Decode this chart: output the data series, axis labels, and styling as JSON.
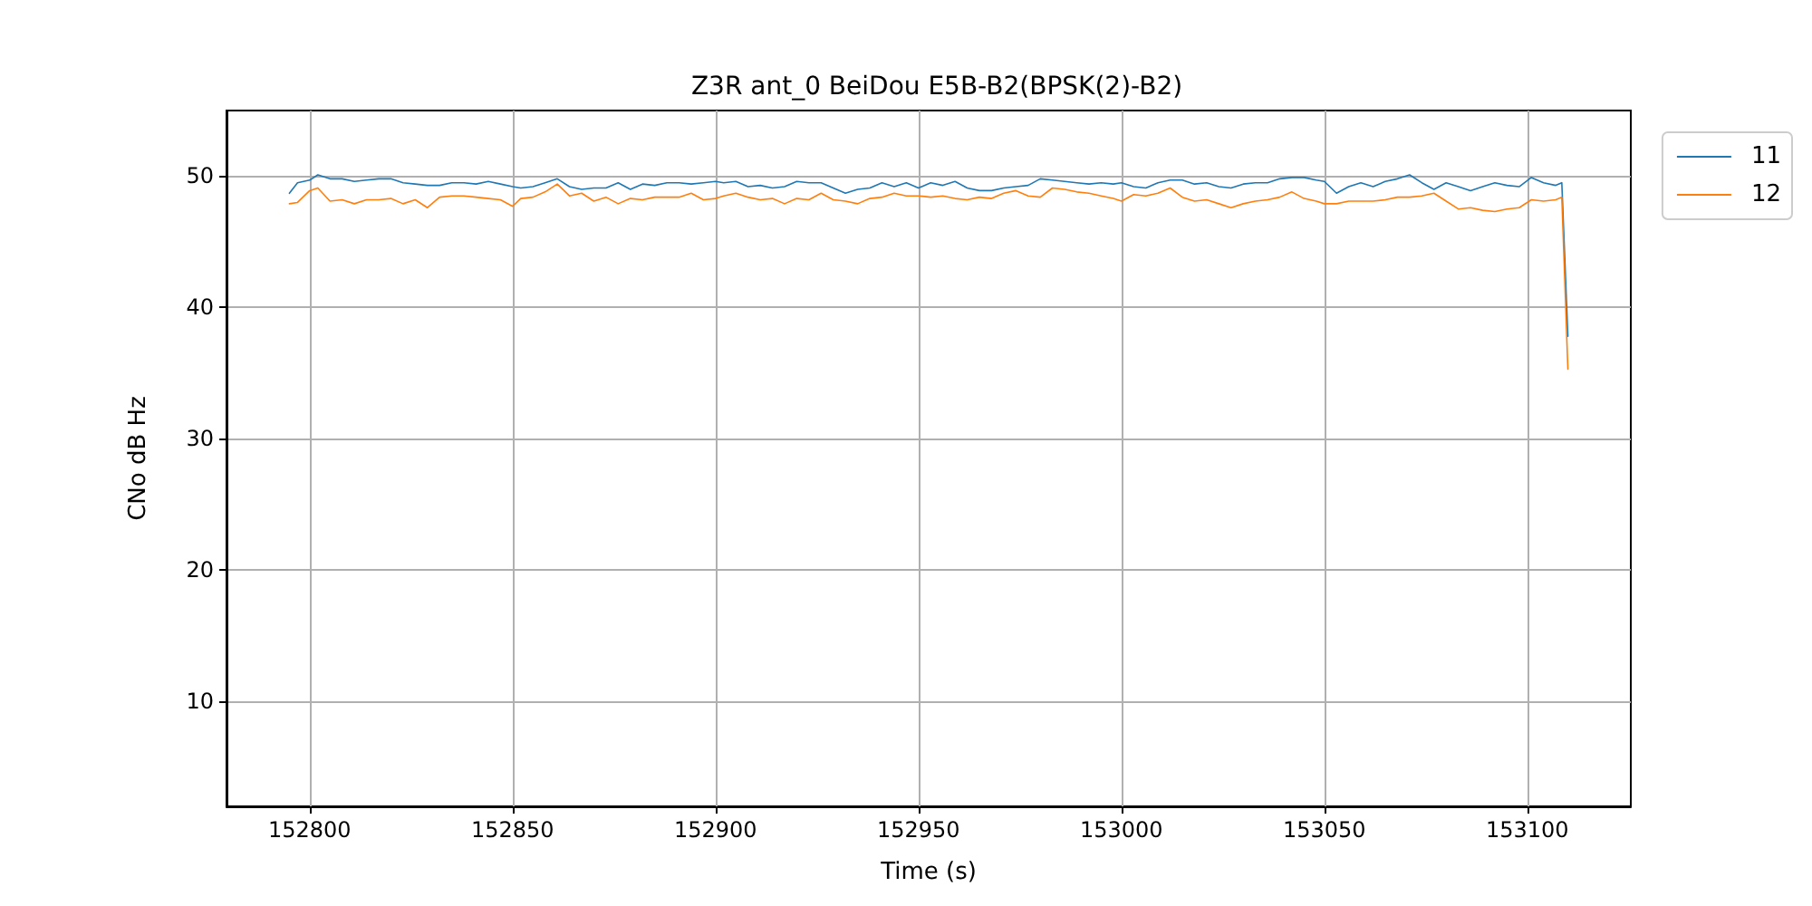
{
  "chart_data": {
    "type": "line",
    "title": "Z3R ant_0 BeiDou E5B-B2(BPSK(2)-B2)",
    "xlabel": "Time (s)",
    "ylabel": "CNo dB Hz",
    "xlim": [
      152779.5,
      153125.5
    ],
    "xticks": [
      152800,
      152850,
      152900,
      152950,
      153000,
      153050,
      153100
    ],
    "ylim": [
      2,
      55
    ],
    "yticks": [
      10,
      20,
      30,
      40,
      50
    ],
    "grid": true,
    "legend": "top right",
    "marker": "none",
    "line_style": "solid",
    "x": [
      152795,
      152797,
      152800,
      152802,
      152805,
      152808,
      152811,
      152814,
      152817,
      152820,
      152823,
      152826,
      152829,
      152832,
      152835,
      152838,
      152841,
      152844,
      152847,
      152850,
      152852,
      152855,
      152858,
      152861,
      152864,
      152867,
      152870,
      152873,
      152876,
      152879,
      152882,
      152885,
      152888,
      152891,
      152894,
      152897,
      152900,
      152902,
      152905,
      152908,
      152911,
      152914,
      152917,
      152920,
      152923,
      152926,
      152929,
      152932,
      152935,
      152938,
      152941,
      152944,
      152947,
      152950,
      152953,
      152956,
      152959,
      152962,
      152965,
      152968,
      152971,
      152974,
      152977,
      152980,
      152983,
      152986,
      152989,
      152992,
      152995,
      152998,
      153000,
      153003,
      153006,
      153009,
      153012,
      153015,
      153018,
      153021,
      153024,
      153027,
      153030,
      153033,
      153036,
      153039,
      153042,
      153045,
      153048,
      153050,
      153053,
      153056,
      153059,
      153062,
      153065,
      153068,
      153071,
      153074,
      153077,
      153080,
      153083,
      153086,
      153089,
      153092,
      153095,
      153098,
      153101,
      153104,
      153107,
      153108.5,
      153110
    ],
    "series": [
      {
        "name": "11",
        "color": "#1f77b4",
        "values": [
          48.7,
          49.5,
          49.7,
          50.1,
          49.8,
          49.8,
          49.6,
          49.7,
          49.8,
          49.8,
          49.5,
          49.4,
          49.3,
          49.3,
          49.5,
          49.5,
          49.4,
          49.6,
          49.4,
          49.2,
          49.1,
          49.2,
          49.5,
          49.8,
          49.2,
          49.0,
          49.1,
          49.1,
          49.5,
          49.0,
          49.4,
          49.3,
          49.5,
          49.5,
          49.4,
          49.5,
          49.6,
          49.5,
          49.6,
          49.2,
          49.3,
          49.1,
          49.2,
          49.6,
          49.5,
          49.5,
          49.1,
          48.7,
          49.0,
          49.1,
          49.5,
          49.2,
          49.5,
          49.1,
          49.5,
          49.3,
          49.6,
          49.1,
          48.9,
          48.9,
          49.1,
          49.2,
          49.3,
          49.8,
          49.7,
          49.6,
          49.5,
          49.4,
          49.5,
          49.4,
          49.5,
          49.2,
          49.1,
          49.5,
          49.7,
          49.7,
          49.4,
          49.5,
          49.2,
          49.1,
          49.4,
          49.5,
          49.5,
          49.8,
          49.9,
          49.9,
          49.7,
          49.6,
          48.7,
          49.2,
          49.5,
          49.2,
          49.6,
          49.8,
          50.1,
          49.5,
          49.0,
          49.5,
          49.2,
          48.9,
          49.2,
          49.5,
          49.3,
          49.2,
          49.9,
          49.5,
          49.3,
          49.5,
          37.8
        ]
      },
      {
        "name": "12",
        "color": "#ff7f0e",
        "values": [
          47.9,
          48.0,
          48.9,
          49.1,
          48.1,
          48.2,
          47.9,
          48.2,
          48.2,
          48.3,
          47.9,
          48.2,
          47.6,
          48.4,
          48.5,
          48.5,
          48.4,
          48.3,
          48.2,
          47.7,
          48.3,
          48.4,
          48.8,
          49.4,
          48.5,
          48.7,
          48.1,
          48.4,
          47.9,
          48.3,
          48.2,
          48.4,
          48.4,
          48.4,
          48.7,
          48.2,
          48.3,
          48.5,
          48.7,
          48.4,
          48.2,
          48.3,
          47.9,
          48.3,
          48.2,
          48.7,
          48.2,
          48.1,
          47.9,
          48.3,
          48.4,
          48.7,
          48.5,
          48.5,
          48.4,
          48.5,
          48.3,
          48.2,
          48.4,
          48.3,
          48.7,
          48.9,
          48.5,
          48.4,
          49.1,
          49.0,
          48.8,
          48.7,
          48.5,
          48.3,
          48.1,
          48.6,
          48.5,
          48.7,
          49.1,
          48.4,
          48.1,
          48.2,
          47.9,
          47.6,
          47.9,
          48.1,
          48.2,
          48.4,
          48.8,
          48.3,
          48.1,
          47.9,
          47.9,
          48.1,
          48.1,
          48.1,
          48.2,
          48.4,
          48.4,
          48.5,
          48.7,
          48.1,
          47.5,
          47.6,
          47.4,
          47.3,
          47.5,
          47.6,
          48.2,
          48.1,
          48.2,
          48.4,
          35.3
        ]
      }
    ]
  }
}
